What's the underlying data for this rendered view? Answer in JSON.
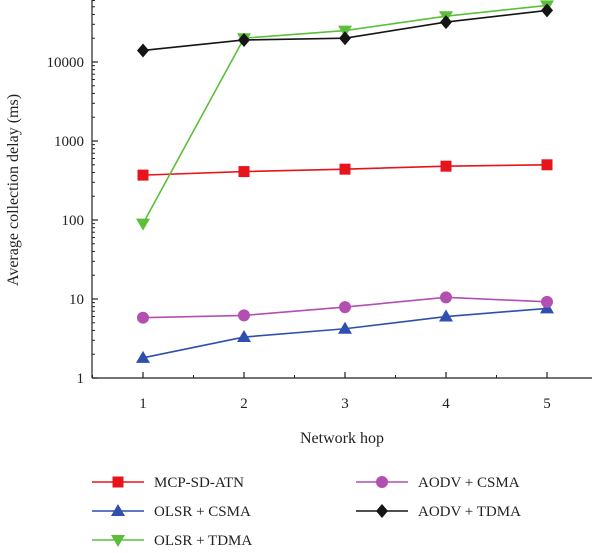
{
  "chart_data": {
    "type": "line",
    "title": "",
    "xlabel": "Network hop",
    "ylabel": "Average collection delay (ms)",
    "yscale": "log",
    "ylim": [
      1,
      60000
    ],
    "xlim": [
      0.3,
      5.6
    ],
    "x": [
      1,
      2,
      3,
      4,
      5
    ],
    "x_ticks": [
      "1",
      "2",
      "3",
      "4",
      "5"
    ],
    "y_ticks": [
      {
        "value": 1,
        "label": "1"
      },
      {
        "value": 10,
        "label": "10"
      },
      {
        "value": 100,
        "label": "100"
      },
      {
        "value": 1000,
        "label": "1000"
      },
      {
        "value": 10000,
        "label": "10000"
      }
    ],
    "grid": false,
    "legend_position": "bottom",
    "series": [
      {
        "name": "MCP-SD-ATN",
        "color": "#e8141b",
        "marker": "square",
        "values": [
          370,
          410,
          440,
          480,
          500
        ]
      },
      {
        "name": "OLSR + CSMA",
        "color": "#2e4fae",
        "marker": "triangle-up",
        "values": [
          1.8,
          3.3,
          4.2,
          6.0,
          7.6
        ]
      },
      {
        "name": "OLSR + TDMA",
        "color": "#5cbf3a",
        "marker": "triangle-down",
        "values": [
          90,
          20000,
          25000,
          38000,
          52000
        ]
      },
      {
        "name": "AODV + CSMA",
        "color": "#b24fb0",
        "marker": "circle",
        "values": [
          5.8,
          6.2,
          7.9,
          10.5,
          9.2
        ]
      },
      {
        "name": "AODV + TDMA",
        "color": "#151515",
        "marker": "diamond",
        "values": [
          14000,
          19000,
          20000,
          32000,
          45000
        ]
      }
    ]
  }
}
